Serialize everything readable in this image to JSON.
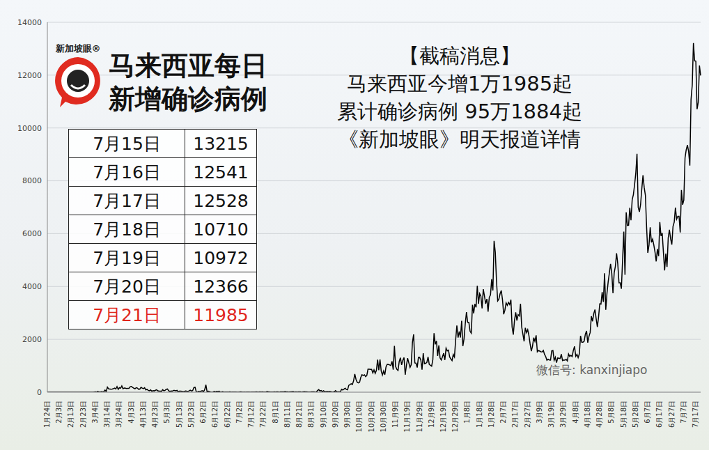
{
  "chart_data": {
    "type": "line",
    "color": "#000000",
    "grid": true,
    "ylim": [
      0,
      14000
    ],
    "yticks": [
      0,
      2000,
      4000,
      6000,
      8000,
      10000,
      12000,
      14000
    ],
    "categories": [
      "1月24日",
      null,
      null,
      null,
      null,
      null,
      null,
      null,
      null,
      null,
      "2月3日",
      null,
      null,
      null,
      null,
      null,
      null,
      null,
      null,
      null,
      "2月13日",
      null,
      null,
      null,
      null,
      null,
      null,
      null,
      null,
      null,
      "2月23日",
      null,
      null,
      null,
      null,
      null,
      null,
      null,
      null,
      null,
      "3月4日",
      null,
      null,
      null,
      null,
      null,
      null,
      null,
      null,
      null,
      "3月14日",
      null,
      null,
      null,
      null,
      null,
      null,
      null,
      null,
      null,
      "3月24日",
      null,
      null,
      null,
      null,
      null,
      null,
      null,
      null,
      null,
      "4月3日",
      null,
      null,
      null,
      null,
      null,
      null,
      null,
      null,
      null,
      "4月13日",
      null,
      null,
      null,
      null,
      null,
      null,
      null,
      null,
      null,
      "4月23日",
      null,
      null,
      null,
      null,
      null,
      null,
      null,
      null,
      null,
      "5月3日",
      null,
      null,
      null,
      null,
      null,
      null,
      null,
      null,
      null,
      "5月13日",
      null,
      null,
      null,
      null,
      null,
      null,
      null,
      null,
      null,
      "5月23日",
      null,
      null,
      null,
      null,
      null,
      null,
      null,
      null,
      null,
      "6月2日",
      null,
      null,
      null,
      null,
      null,
      null,
      null,
      null,
      null,
      "6月12日",
      null,
      null,
      null,
      null,
      null,
      null,
      null,
      null,
      null,
      "6月22日",
      null,
      null,
      null,
      null,
      null,
      null,
      null,
      null,
      null,
      "7月2日",
      null,
      null,
      null,
      null,
      null,
      null,
      null,
      null,
      null,
      "7月12日",
      null,
      null,
      null,
      null,
      null,
      null,
      null,
      null,
      null,
      "7月22日",
      null,
      null,
      null,
      null,
      null,
      null,
      null,
      null,
      null,
      "8月1日",
      null,
      null,
      null,
      null,
      null,
      null,
      null,
      null,
      null,
      "8月11日",
      null,
      null,
      null,
      null,
      null,
      null,
      null,
      null,
      null,
      "8月21日",
      null,
      null,
      null,
      null,
      null,
      null,
      null,
      null,
      null,
      "8月31日",
      null,
      null,
      null,
      null,
      null,
      null,
      null,
      null,
      null,
      "9月10日",
      null,
      null,
      null,
      null,
      null,
      null,
      null,
      null,
      null,
      "9月20日",
      null,
      null,
      null,
      null,
      null,
      null,
      null,
      null,
      null,
      "9月30日",
      null,
      null,
      null,
      null,
      null,
      null,
      null,
      null,
      null,
      "10月10日",
      null,
      null,
      null,
      null,
      null,
      null,
      null,
      null,
      null,
      "10月20日",
      null,
      null,
      null,
      null,
      null,
      null,
      null,
      null,
      null,
      "10月30日",
      null,
      null,
      null,
      null,
      null,
      null,
      null,
      null,
      null,
      "11月9日",
      null,
      null,
      null,
      null,
      null,
      null,
      null,
      null,
      null,
      "11月19日",
      null,
      null,
      null,
      null,
      null,
      null,
      null,
      null,
      null,
      "11月29日",
      null,
      null,
      null,
      null,
      null,
      null,
      null,
      null,
      null,
      "12月9日",
      null,
      null,
      null,
      null,
      null,
      null,
      null,
      null,
      null,
      "12月19日",
      null,
      null,
      null,
      null,
      null,
      null,
      null,
      null,
      null,
      "12月29日",
      null,
      null,
      null,
      null,
      null,
      null,
      null,
      null,
      null,
      "1月8日",
      null,
      null,
      null,
      null,
      null,
      null,
      null,
      null,
      null,
      "1月18日",
      null,
      null,
      null,
      null,
      null,
      null,
      null,
      null,
      null,
      "1月28日",
      null,
      null,
      null,
      null,
      null,
      null,
      null,
      null,
      null,
      "2月7日",
      null,
      null,
      null,
      null,
      null,
      null,
      null,
      null,
      null,
      "2月17日",
      null,
      null,
      null,
      null,
      null,
      null,
      null,
      null,
      null,
      "2月27日",
      null,
      null,
      null,
      null,
      null,
      null,
      null,
      null,
      null,
      "3月9日",
      null,
      null,
      null,
      null,
      null,
      null,
      null,
      null,
      null,
      "3月19日",
      null,
      null,
      null,
      null,
      null,
      null,
      null,
      null,
      null,
      "3月29日",
      null,
      null,
      null,
      null,
      null,
      null,
      null,
      null,
      null,
      "4月8日",
      null,
      null,
      null,
      null,
      null,
      null,
      null,
      null,
      null,
      "4月18日",
      null,
      null,
      null,
      null,
      null,
      null,
      null,
      null,
      null,
      "4月28日",
      null,
      null,
      null,
      null,
      null,
      null,
      null,
      null,
      null,
      "5月8日",
      null,
      null,
      null,
      null,
      null,
      null,
      null,
      null,
      null,
      "5月18日",
      null,
      null,
      null,
      null,
      null,
      null,
      null,
      null,
      null,
      "5月28日",
      null,
      null,
      null,
      null,
      null,
      null,
      null,
      null,
      null,
      "6月7日",
      null,
      null,
      null,
      null,
      null,
      null,
      null,
      null,
      null,
      "6月17日",
      null,
      null,
      null,
      null,
      null,
      null,
      null,
      null,
      null,
      "6月27日",
      null,
      null,
      null,
      null,
      null,
      null,
      null,
      null,
      null,
      "7月7日",
      null,
      null,
      null,
      null,
      null,
      null,
      null,
      null,
      null,
      "7月17日",
      null,
      null,
      null,
      null
    ],
    "values": [
      0,
      3,
      1,
      0,
      0,
      0,
      0,
      0,
      0,
      0,
      0,
      0,
      2,
      2,
      1,
      2,
      1,
      0,
      0,
      0,
      0,
      0,
      0,
      0,
      0,
      0,
      0,
      0,
      0,
      0,
      0,
      0,
      0,
      0,
      1,
      2,
      1,
      0,
      0,
      7,
      14,
      5,
      28,
      10,
      6,
      18,
      12,
      20,
      80,
      26,
      190,
      125,
      120,
      110,
      117,
      130,
      153,
      123,
      212,
      106,
      172,
      149,
      235,
      130,
      159,
      150,
      140,
      142,
      142,
      208,
      217,
      179,
      150,
      131,
      170,
      156,
      109,
      118,
      184,
      153,
      134,
      170,
      85,
      110,
      69,
      54,
      84,
      36,
      57,
      50,
      71,
      88,
      51,
      38,
      40,
      31,
      94,
      57,
      69,
      105,
      122,
      55,
      30,
      45,
      39,
      68,
      67,
      54,
      67,
      16,
      37,
      40,
      36,
      17,
      22,
      47,
      37,
      31,
      50,
      78,
      48,
      60,
      172,
      187,
      15,
      10,
      30,
      20,
      38,
      57,
      20,
      93,
      277,
      19,
      37,
      19,
      7,
      2,
      7,
      31,
      8,
      33,
      29,
      41,
      6,
      9,
      21,
      3,
      8,
      6,
      5,
      8,
      12,
      2,
      4,
      5,
      4,
      5,
      1,
      1,
      6,
      10,
      9,
      3,
      7,
      2,
      8,
      7,
      7,
      2,
      6,
      8,
      5,
      8,
      12,
      9,
      5,
      15,
      6,
      10,
      7,
      8,
      8,
      23,
      13,
      10,
      9,
      9,
      9,
      10,
      9,
      13,
      15,
      3,
      11,
      10,
      12,
      15,
      24,
      10,
      12,
      8,
      11,
      14,
      21,
      18,
      4,
      13,
      8,
      12,
      14,
      10,
      8,
      15,
      20,
      12,
      11,
      7,
      6,
      6,
      16,
      12,
      10,
      6,
      8,
      62,
      100,
      45,
      62,
      25,
      56,
      20,
      21,
      26,
      20,
      28,
      19,
      9,
      11,
      16,
      57,
      15,
      11,
      14,
      20,
      111,
      82,
      115,
      150,
      101,
      89,
      260,
      287,
      317,
      293,
      432,
      691,
      489,
      375,
      354,
      374,
      563,
      660,
      629,
      660,
      589,
      629,
      869,
      871,
      865,
      862,
      732,
      847,
      710,
      823,
      1228,
      835,
      1240,
      801,
      649,
      799,
      659,
      957,
      1054,
      1049,
      1032,
      1009,
      1168,
      852,
      1755,
      972,
      869,
      822,
      1162,
      1304,
      1032,
      1208,
      1309,
      659,
      1010,
      1290,
      1109,
      935,
      1041,
      1884,
      2188,
      1109,
      1096,
      935,
      1315,
      1315,
      1212,
      851,
      1472,
      1075,
      1094,
      1123,
      1335,
      1054,
      1018,
      986,
      1229,
      2234,
      1810,
      1937,
      1371,
      1772,
      1295,
      1220,
      1340,
      1475,
      1219,
      1666,
      1565,
      1589,
      1335,
      1258,
      1196,
      1428,
      1335,
      1985,
      2525,
      2068,
      2295,
      2068,
      2704,
      1741,
      2027,
      2593,
      3027,
      2643,
      2641,
      2306,
      2232,
      3309,
      2985,
      3337,
      3211,
      4029,
      3346,
      3729,
      3631,
      3170,
      3900,
      3637,
      3346,
      3531,
      3048,
      3585,
      3680,
      4275,
      3848,
      5728,
      5298,
      4214,
      3455,
      3520,
      3731,
      3847,
      3499,
      2949,
      3100,
      3384,
      3288,
      3397,
      3318,
      3499,
      2464,
      2176,
      2720,
      3021,
      2712,
      2936,
      2888,
      3347,
      2468,
      2192,
      1924,
      2437,
      2253,
      2364,
      2148,
      1828,
      1555,
      1745,
      2063,
      1923,
      2154,
      1529,
      1575,
      1555,
      1529,
      1523,
      1578,
      1431,
      1345,
      1208,
      1246,
      1219,
      1213,
      1565,
      1576,
      1208,
      1321,
      1116,
      1294,
      1287,
      1275,
      1438,
      1195,
      1217,
      1213,
      1246,
      1184,
      1447,
      1350,
      1397,
      1349,
      1583,
      1733,
      1358,
      1431,
      1309,
      1451,
      2134,
      1892,
      1889,
      1930,
      2199,
      2318,
      1874,
      2114,
      2257,
      2875,
      2683,
      2972,
      3127,
      2776,
      2468,
      2845,
      3342,
      3332,
      3788,
      3418,
      4498,
      3120,
      3744,
      4174,
      4519,
      4855,
      4498,
      3744,
      4519,
      4765,
      5259,
      4855,
      4138,
      4140,
      3914,
      5005,
      6075,
      4446,
      6806,
      6312,
      6320,
      6976,
      6509,
      7289,
      7478,
      7857,
      8290,
      9020,
      6999,
      6824,
      7105,
      7703,
      8209,
      7748,
      7452,
      6241,
      5271,
      5566,
      6239,
      5671,
      5793,
      5571,
      5304,
      4949,
      5419,
      5150,
      6440,
      5911,
      6022,
      5293,
      4611,
      5244,
      4743,
      5841,
      6144,
      5803,
      5586,
      6276,
      6437,
      6988,
      6553,
      6658,
      6658,
      6045,
      7654,
      7097,
      7275,
      8868,
      9180,
      9353,
      9105,
      8574,
      11079,
      11618,
      13215,
      12541,
      12528,
      10710,
      10972,
      12366,
      11985
    ]
  },
  "header": {
    "logo": "新加坡眼®",
    "title_lines": [
      "马来西亚每日",
      "新增确诊病例"
    ]
  },
  "table": {
    "rows": [
      [
        "7月15日",
        13215
      ],
      [
        "7月16日",
        12541
      ],
      [
        "7月17日",
        12528
      ],
      [
        "7月18日",
        10710
      ],
      [
        "7月19日",
        10972
      ],
      [
        "7月20日",
        12366
      ],
      [
        "7月21日",
        11985
      ]
    ]
  },
  "annotation": [
    "【截稿消息】",
    "马来西亚今增1万1985起",
    "累计确诊病例 95万1884起",
    "《新加坡眼》明天报道详情"
  ],
  "watermark": "微信号: kanxinjiapo"
}
